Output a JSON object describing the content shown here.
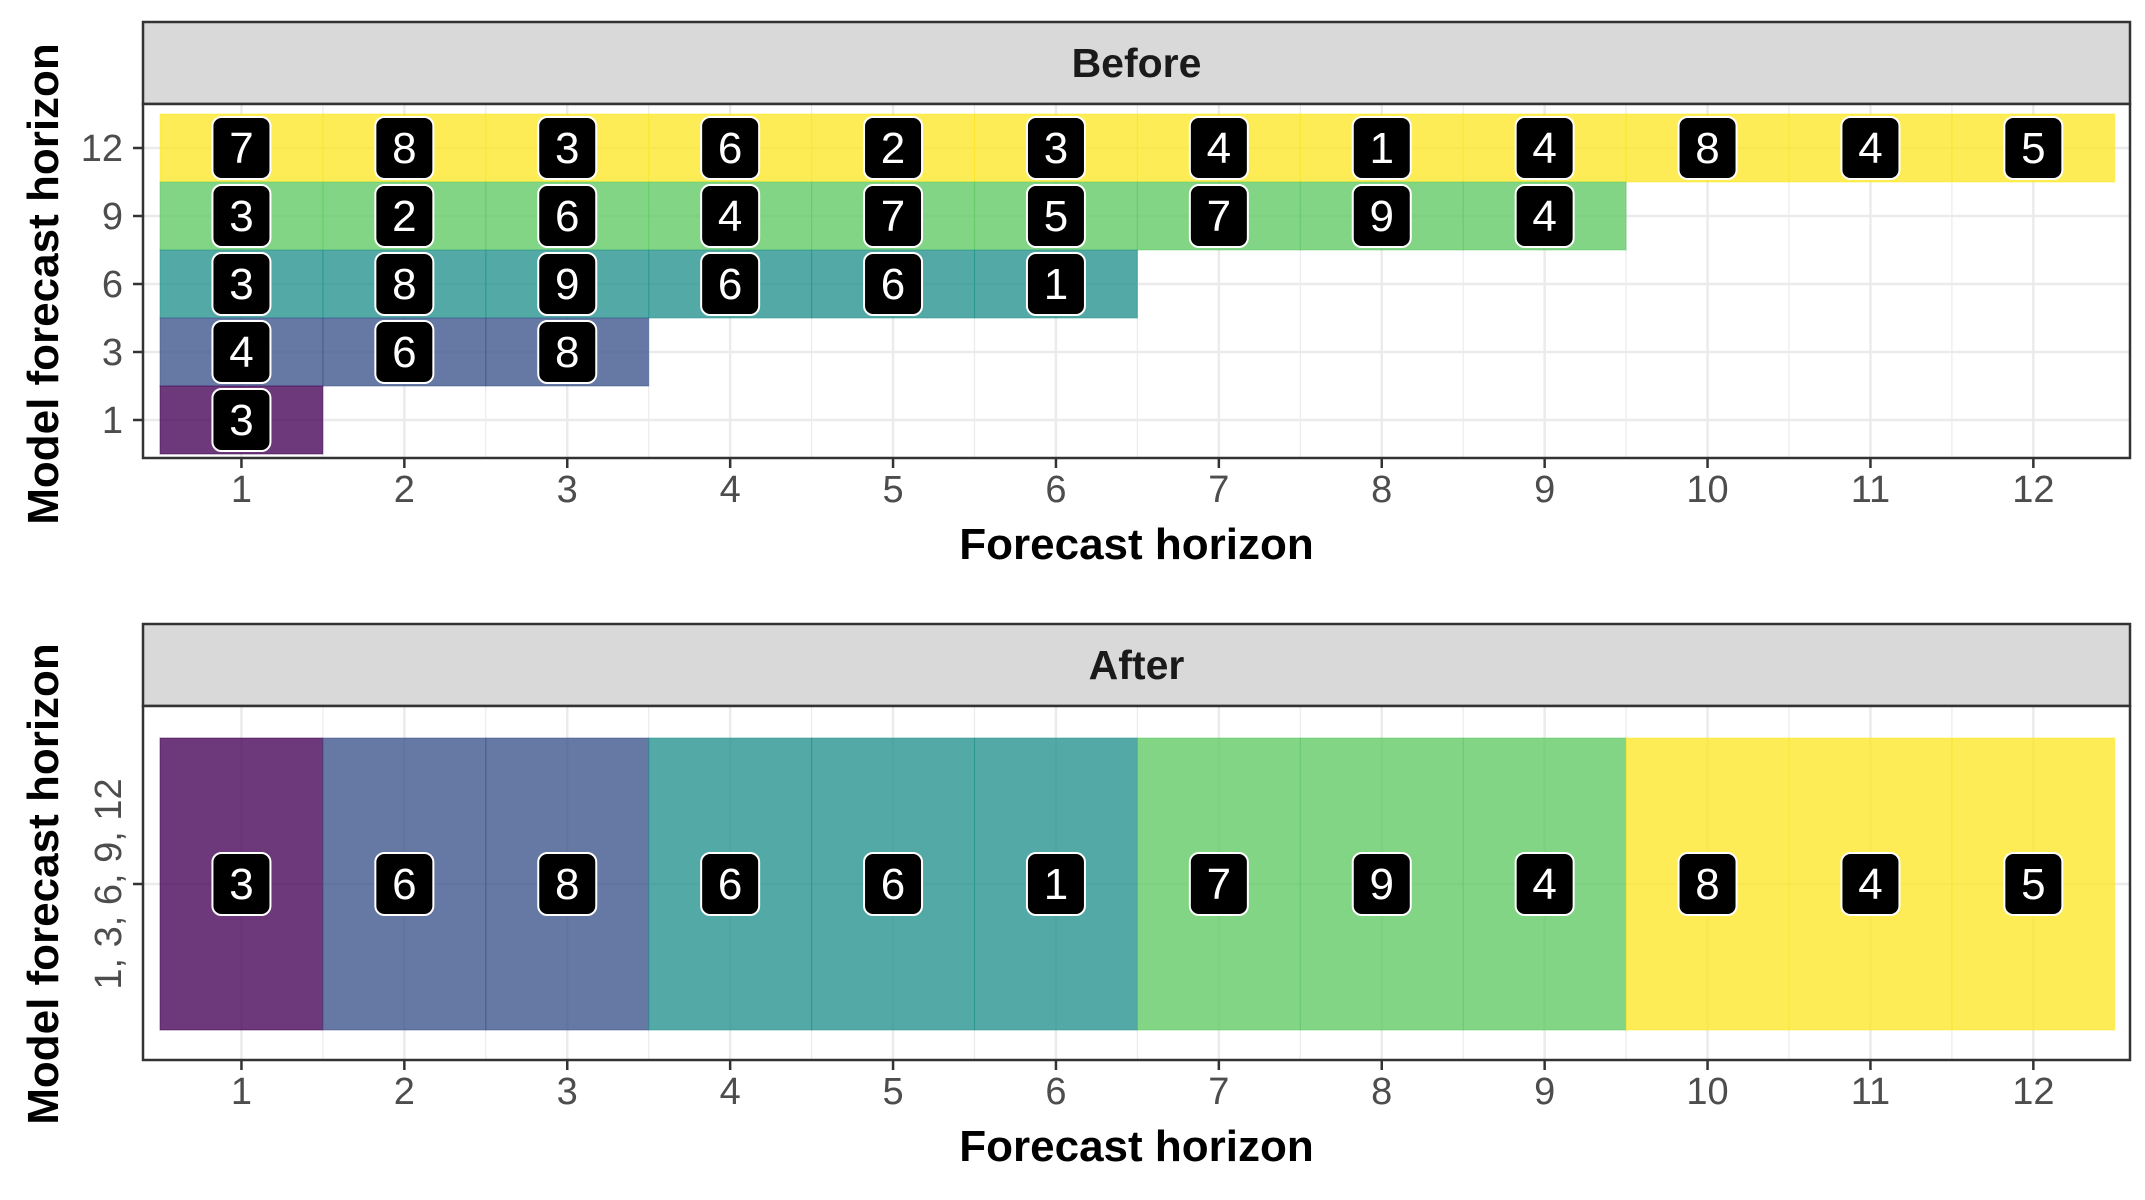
{
  "chart_data": [
    {
      "type": "heatmap",
      "title": "Before",
      "xlabel": "Forecast horizon",
      "ylabel": "Model forecast horizon",
      "x_ticks": [
        "1",
        "2",
        "3",
        "4",
        "5",
        "6",
        "7",
        "8",
        "9",
        "10",
        "11",
        "12"
      ],
      "y_ticks": [
        "1",
        "3",
        "6",
        "9",
        "12"
      ],
      "grid": true,
      "legend": "none",
      "series": [
        {
          "model_horizon": "12",
          "color": "#fde725",
          "values": [
            7,
            8,
            3,
            6,
            2,
            3,
            4,
            1,
            4,
            8,
            4,
            5
          ]
        },
        {
          "model_horizon": "9",
          "color": "#5ec962",
          "values": [
            3,
            2,
            6,
            4,
            7,
            5,
            7,
            9,
            4
          ]
        },
        {
          "model_horizon": "6",
          "color": "#21918c",
          "values": [
            3,
            8,
            9,
            6,
            6,
            1
          ]
        },
        {
          "model_horizon": "3",
          "color": "#3b528b",
          "values": [
            4,
            6,
            8
          ]
        },
        {
          "model_horizon": "1",
          "color": "#440154",
          "values": [
            3
          ]
        }
      ]
    },
    {
      "type": "heatmap",
      "title": "After",
      "xlabel": "Forecast horizon",
      "ylabel": "Model forecast horizon",
      "x_ticks": [
        "1",
        "2",
        "3",
        "4",
        "5",
        "6",
        "7",
        "8",
        "9",
        "10",
        "11",
        "12"
      ],
      "y_ticks": [
        "1, 3, 6, 9, 12"
      ],
      "grid": true,
      "legend": "none",
      "values": [
        3,
        6,
        8,
        6,
        6,
        1,
        7,
        9,
        4,
        8,
        4,
        5
      ],
      "colors": [
        "#440154",
        "#3b528b",
        "#3b528b",
        "#21918c",
        "#21918c",
        "#21918c",
        "#5ec962",
        "#5ec962",
        "#5ec962",
        "#fde725",
        "#fde725",
        "#fde725"
      ]
    }
  ]
}
